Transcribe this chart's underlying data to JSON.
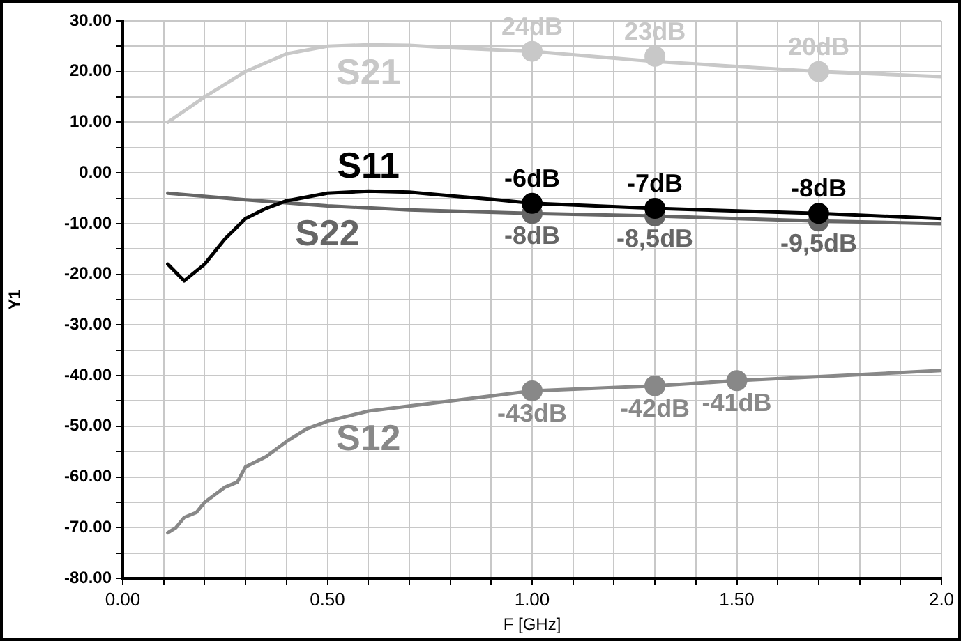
{
  "chart_data": {
    "type": "line",
    "xlabel": "F [GHz]",
    "ylabel": "Y1",
    "xlim": [
      0,
      2
    ],
    "ylim": [
      -80,
      30
    ],
    "xticks": [
      {
        "value": 0,
        "label": "0.00"
      },
      {
        "value": 0.1,
        "label": null
      },
      {
        "value": 0.2,
        "label": null
      },
      {
        "value": 0.3,
        "label": null
      },
      {
        "value": 0.4,
        "label": null
      },
      {
        "value": 0.5,
        "label": "0.50"
      },
      {
        "value": 0.6,
        "label": null
      },
      {
        "value": 0.7,
        "label": null
      },
      {
        "value": 0.8,
        "label": null
      },
      {
        "value": 0.9,
        "label": null
      },
      {
        "value": 1,
        "label": "1.00"
      },
      {
        "value": 1.1,
        "label": null
      },
      {
        "value": 1.2,
        "label": null
      },
      {
        "value": 1.3,
        "label": null
      },
      {
        "value": 1.4,
        "label": null
      },
      {
        "value": 1.5,
        "label": "1.50"
      },
      {
        "value": 1.6,
        "label": null
      },
      {
        "value": 1.7,
        "label": null
      },
      {
        "value": 1.8,
        "label": null
      },
      {
        "value": 1.9,
        "label": null
      },
      {
        "value": 2,
        "label": "2.0"
      }
    ],
    "yticks": [
      {
        "value": -80,
        "label": "-80.00"
      },
      {
        "value": -75,
        "label": null
      },
      {
        "value": -70,
        "label": "-70.00"
      },
      {
        "value": -65,
        "label": null
      },
      {
        "value": -60,
        "label": "-60.00"
      },
      {
        "value": -55,
        "label": null
      },
      {
        "value": -50,
        "label": "-50.00"
      },
      {
        "value": -45,
        "label": null
      },
      {
        "value": -40,
        "label": "-40.00"
      },
      {
        "value": -35,
        "label": null
      },
      {
        "value": -30,
        "label": "-30.00"
      },
      {
        "value": -25,
        "label": null
      },
      {
        "value": -20,
        "label": "-20.00"
      },
      {
        "value": -15,
        "label": null
      },
      {
        "value": -10,
        "label": "-10.00"
      },
      {
        "value": -5,
        "label": null
      },
      {
        "value": 0,
        "label": "0.00"
      },
      {
        "value": 5,
        "label": null
      },
      {
        "value": 10,
        "label": "10.00"
      },
      {
        "value": 15,
        "label": null
      },
      {
        "value": 20,
        "label": "20.00"
      },
      {
        "value": 25,
        "label": null
      },
      {
        "value": 30,
        "label": "30.00"
      }
    ],
    "grid": true,
    "legend": false,
    "line_style": "solid",
    "marker": "none",
    "series": [
      {
        "name": "S21",
        "type": "line",
        "color": "#c8c8c8",
        "x": [
          0.11,
          0.2,
          0.3,
          0.4,
          0.5,
          0.6,
          0.7,
          0.8,
          1.0,
          1.3,
          1.7,
          2.0
        ],
        "values": [
          10,
          15,
          20,
          23.5,
          25,
          25.3,
          25.2,
          24.7,
          24,
          22,
          20,
          19
        ]
      },
      {
        "name": "S11",
        "type": "line",
        "color": "#000000",
        "x": [
          0.11,
          0.15,
          0.2,
          0.25,
          0.3,
          0.35,
          0.4,
          0.5,
          0.6,
          0.7,
          0.8,
          0.9,
          1.0,
          1.3,
          1.7,
          2.0
        ],
        "values": [
          -18,
          -21.3,
          -18,
          -13,
          -9,
          -7,
          -5.5,
          -4,
          -3.6,
          -3.8,
          -4.5,
          -5.2,
          -6,
          -7,
          -8,
          -9
        ]
      },
      {
        "name": "S22",
        "type": "line",
        "color": "#666666",
        "x": [
          0.11,
          0.3,
          0.5,
          0.7,
          1.0,
          1.3,
          1.7,
          2.0
        ],
        "values": [
          -4,
          -5.3,
          -6.5,
          -7.3,
          -8,
          -8.5,
          -9.5,
          -10
        ]
      },
      {
        "name": "S12",
        "type": "line",
        "color": "#888888",
        "x": [
          0.11,
          0.13,
          0.15,
          0.18,
          0.2,
          0.25,
          0.28,
          0.3,
          0.35,
          0.4,
          0.45,
          0.5,
          0.6,
          0.7,
          0.8,
          0.9,
          1.0,
          1.3,
          1.5,
          2.0
        ],
        "values": [
          -71,
          -70,
          -68,
          -67,
          -65,
          -62,
          -61,
          -58,
          -56,
          -53,
          -50.5,
          -49,
          -47,
          -46,
          -45,
          -44,
          -43,
          -42,
          -41,
          -39
        ]
      },
      {
        "type": "scatter",
        "marker": "circle",
        "color": "#c8c8c8",
        "x": [
          1.0,
          1.3,
          1.7
        ],
        "values": [
          24,
          23,
          20
        ],
        "value_labels": [
          "24dB",
          "23dB",
          "20dB"
        ]
      },
      {
        "type": "scatter",
        "marker": "circle",
        "color": "#000000",
        "x": [
          1.0,
          1.3,
          1.7
        ],
        "values": [
          -6,
          -7,
          -8
        ],
        "value_labels": [
          "-6dB",
          "-7dB",
          "-8dB"
        ]
      },
      {
        "type": "scatter",
        "marker": "circle",
        "color": "#666666",
        "x": [
          1.0,
          1.3,
          1.7
        ],
        "values": [
          -8,
          -8.5,
          -9.5
        ],
        "value_labels": [
          "-8dB",
          "-8,5dB",
          "-9,5dB"
        ]
      },
      {
        "type": "scatter",
        "marker": "circle",
        "color": "#888888",
        "x": [
          1.0,
          1.3,
          1.5
        ],
        "values": [
          -43,
          -42,
          -41
        ],
        "value_labels": [
          "-43dB",
          "-42dB",
          "-41dB"
        ]
      }
    ]
  }
}
